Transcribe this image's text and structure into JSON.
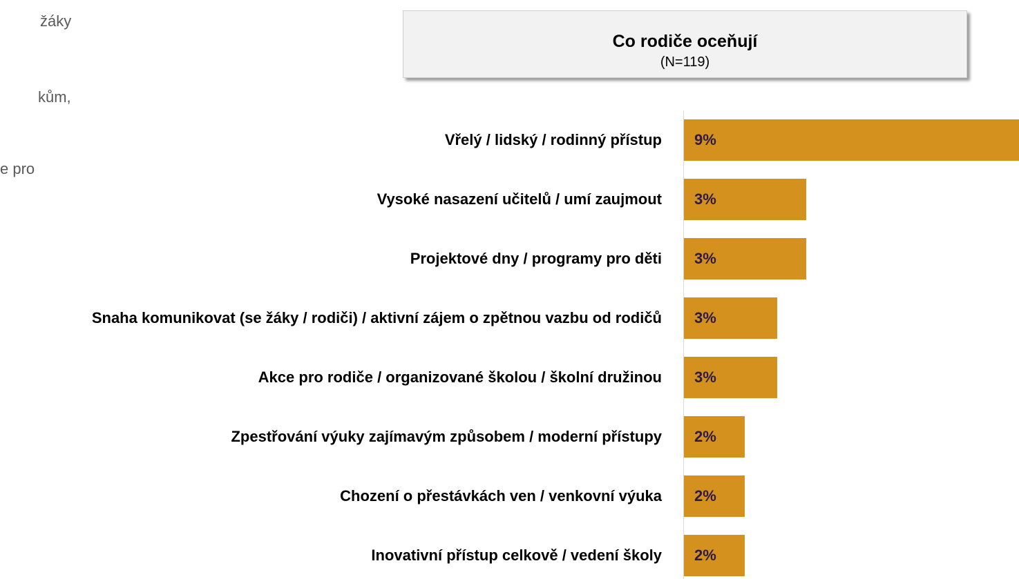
{
  "side_text": [
    "žáky",
    "kům,",
    "e pro"
  ],
  "chart_data": {
    "type": "bar",
    "orientation": "horizontal",
    "title": "Co rodiče oceňují",
    "subtitle": "(N=119)",
    "color": "#d4911e",
    "categories": [
      "Vřelý / lidský / rodinný přístup",
      "Vysoké nasazení učitelů / umí zaujmout",
      "Projektové dny / programy pro děti",
      "Snaha komunikovat (se žáky / rodiči) / aktivní zájem o zpětnou vazbu od rodičů",
      "Akce pro rodiče / organizované školou / školní družinou",
      "Zpestřování výuky zajímavým způsobem / moderní přístupy",
      "Chození o přestávkách ven / venkovní výuka",
      "Inovativní přístup celkově / vedení školy"
    ],
    "values": [
      9.4,
      3.4,
      3.4,
      2.6,
      2.6,
      1.7,
      1.7,
      1.7
    ],
    "value_labels": [
      "9%",
      "3%",
      "3%",
      "3%",
      "3%",
      "2%",
      "2%",
      "2%"
    ]
  }
}
